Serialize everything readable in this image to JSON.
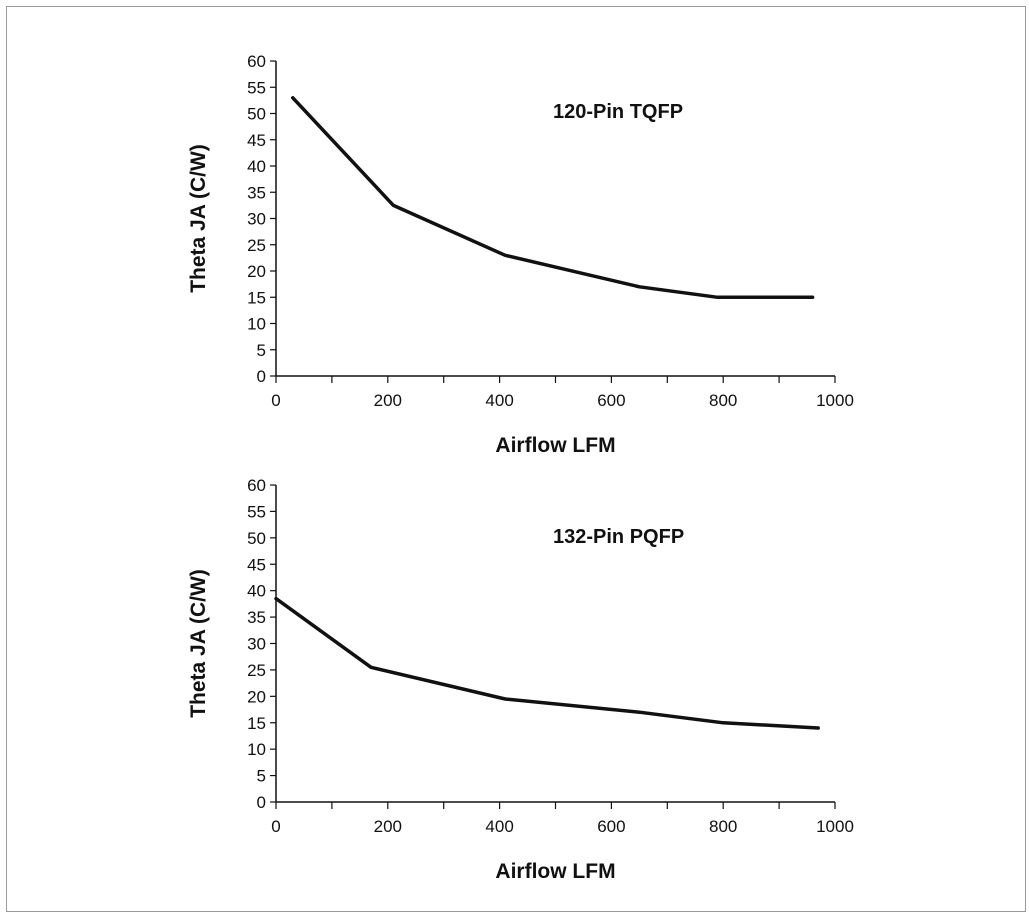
{
  "chart_data": [
    {
      "type": "line",
      "title": "120-Pin TQFP",
      "xlabel": "Airflow LFM",
      "ylabel": "Theta JA (C/W)",
      "xlim": [
        0,
        1000
      ],
      "ylim": [
        0,
        60
      ],
      "x_ticks": [
        "0",
        "200",
        "400",
        "600",
        "800",
        "1000"
      ],
      "y_ticks": [
        "0",
        "5",
        "10",
        "15",
        "20",
        "25",
        "30",
        "35",
        "40",
        "45",
        "50",
        "55",
        "60"
      ],
      "grid": false,
      "series": [
        {
          "x": [
            30,
            210,
            410,
            650,
            790,
            960
          ],
          "y": [
            53,
            32.5,
            23,
            17,
            15,
            15
          ]
        }
      ]
    },
    {
      "type": "line",
      "title": "132-Pin PQFP",
      "xlabel": "Airflow LFM",
      "ylabel": "Theta JA (C/W)",
      "xlim": [
        0,
        1000
      ],
      "ylim": [
        0,
        60
      ],
      "x_ticks": [
        "0",
        "200",
        "400",
        "600",
        "800",
        "1000"
      ],
      "y_ticks": [
        "0",
        "5",
        "10",
        "15",
        "20",
        "25",
        "30",
        "35",
        "40",
        "45",
        "50",
        "55",
        "60"
      ],
      "grid": false,
      "series": [
        {
          "x": [
            0,
            170,
            410,
            650,
            800,
            970
          ],
          "y": [
            38.5,
            25.5,
            19.5,
            17,
            15,
            14
          ]
        }
      ]
    }
  ]
}
